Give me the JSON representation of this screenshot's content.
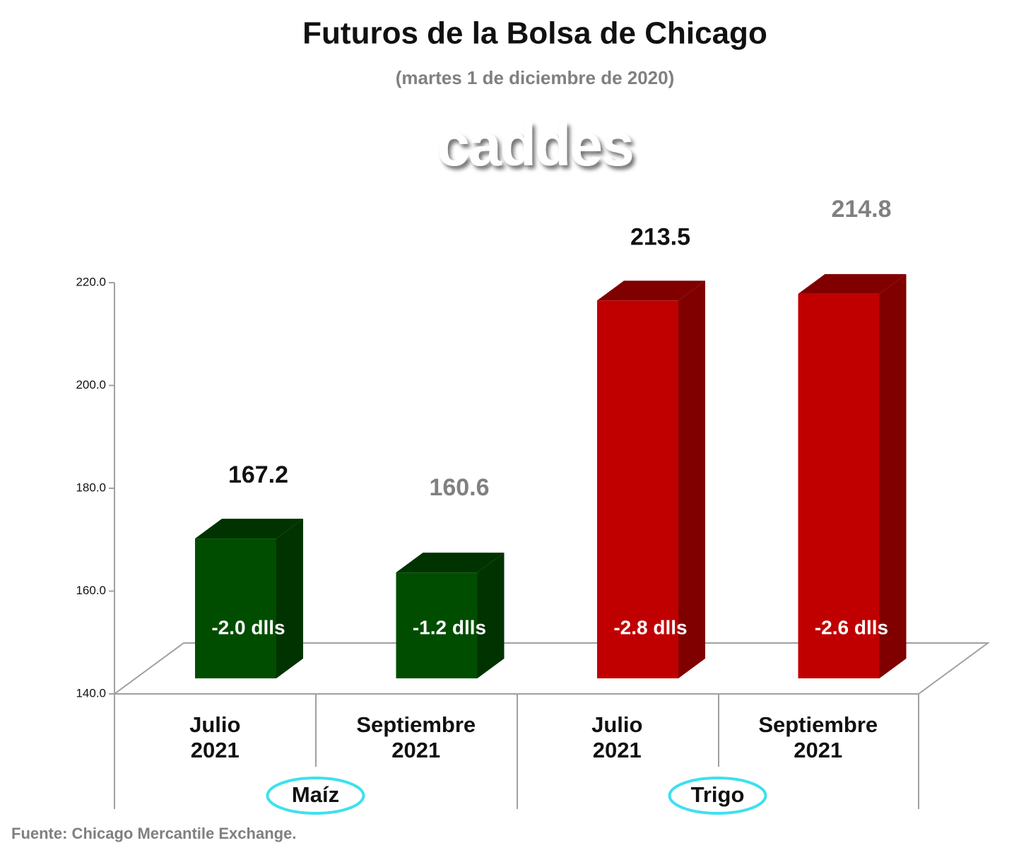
{
  "chart_data": {
    "type": "bar3d",
    "title": "Futuros de la Bolsa de Chicago",
    "subtitle": "(martes 1 de diciembre de 2020)",
    "logo": "caddes",
    "source": "Fuente: Chicago Mercantile Exchange.",
    "categories": [
      "Julio 2021",
      "Septiembre 2021",
      "Julio 2021",
      "Septiembre 2021"
    ],
    "groups": [
      "Maíz",
      "Trigo"
    ],
    "values": [
      167.2,
      160.6,
      213.5,
      214.8
    ],
    "colors": [
      "#004d00",
      "#004d00",
      "#c00000",
      "#c00000"
    ],
    "side_colors": [
      "#003300",
      "#003300",
      "#800000",
      "#800000"
    ],
    "annotations": [
      "-2.0 dlls",
      "-1.2 dlls",
      "-2.8 dlls",
      "-2.6 dlls"
    ],
    "ylim": [
      140,
      220
    ],
    "yticks": [
      {
        "value": 140,
        "label": "140.0"
      },
      {
        "value": 160,
        "label": "160.0"
      },
      {
        "value": 180,
        "label": "180.0"
      },
      {
        "value": 200,
        "label": "200.0"
      },
      {
        "value": 220,
        "label": "220.0"
      }
    ]
  }
}
